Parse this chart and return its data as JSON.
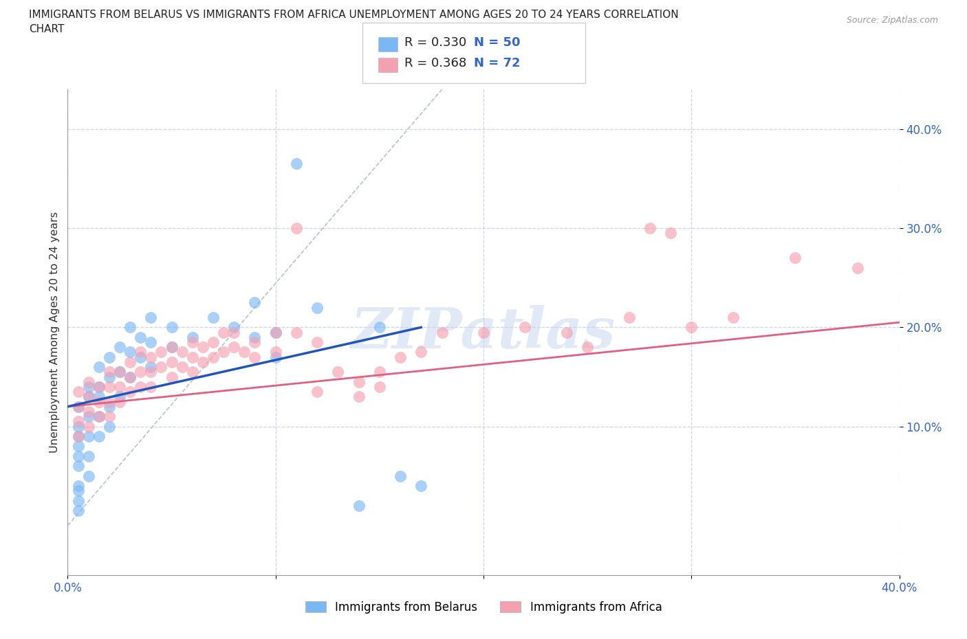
{
  "title_line1": "IMMIGRANTS FROM BELARUS VS IMMIGRANTS FROM AFRICA UNEMPLOYMENT AMONG AGES 20 TO 24 YEARS CORRELATION",
  "title_line2": "CHART",
  "source": "Source: ZipAtlas.com",
  "ylabel": "Unemployment Among Ages 20 to 24 years",
  "xlim": [
    0.0,
    0.4
  ],
  "ylim": [
    -0.05,
    0.44
  ],
  "watermark": "ZIPatlas",
  "legend_label1": "Immigrants from Belarus",
  "legend_label2": "Immigrants from Africa",
  "color_belarus": "#7ab8f5",
  "color_africa": "#f5a0b0",
  "color_trendline_belarus": "#2255bb",
  "color_trendline_africa": "#e06080",
  "color_diagonal": "#b0b8cc",
  "tick_color": "#3366cc",
  "belarus_x": [
    0.005,
    0.005,
    0.005,
    0.005,
    0.005,
    0.005,
    0.005,
    0.005,
    0.005,
    0.005,
    0.01,
    0.01,
    0.01,
    0.01,
    0.01,
    0.01,
    0.015,
    0.015,
    0.015,
    0.015,
    0.015,
    0.02,
    0.02,
    0.02,
    0.02,
    0.025,
    0.025,
    0.025,
    0.03,
    0.03,
    0.03,
    0.035,
    0.035,
    0.04,
    0.04,
    0.04,
    0.05,
    0.05,
    0.06,
    0.07,
    0.08,
    0.09,
    0.09,
    0.1,
    0.1,
    0.11,
    0.12,
    0.14,
    0.15,
    0.16,
    0.17
  ],
  "belarus_y": [
    0.12,
    0.1,
    0.09,
    0.08,
    0.07,
    0.06,
    0.04,
    0.035,
    0.025,
    0.015,
    0.14,
    0.13,
    0.11,
    0.09,
    0.07,
    0.05,
    0.16,
    0.14,
    0.13,
    0.11,
    0.09,
    0.17,
    0.15,
    0.12,
    0.1,
    0.18,
    0.155,
    0.13,
    0.2,
    0.175,
    0.15,
    0.19,
    0.17,
    0.21,
    0.185,
    0.16,
    0.2,
    0.18,
    0.19,
    0.21,
    0.2,
    0.225,
    0.19,
    0.195,
    0.17,
    0.365,
    0.22,
    0.02,
    0.2,
    0.05,
    0.04
  ],
  "africa_x": [
    0.005,
    0.005,
    0.005,
    0.005,
    0.01,
    0.01,
    0.01,
    0.01,
    0.015,
    0.015,
    0.015,
    0.02,
    0.02,
    0.02,
    0.02,
    0.025,
    0.025,
    0.025,
    0.03,
    0.03,
    0.03,
    0.035,
    0.035,
    0.035,
    0.04,
    0.04,
    0.04,
    0.045,
    0.045,
    0.05,
    0.05,
    0.05,
    0.055,
    0.055,
    0.06,
    0.06,
    0.06,
    0.065,
    0.065,
    0.07,
    0.07,
    0.075,
    0.075,
    0.08,
    0.08,
    0.085,
    0.09,
    0.09,
    0.1,
    0.1,
    0.11,
    0.11,
    0.12,
    0.12,
    0.13,
    0.14,
    0.14,
    0.15,
    0.15,
    0.16,
    0.17,
    0.18,
    0.2,
    0.22,
    0.24,
    0.25,
    0.27,
    0.28,
    0.29,
    0.3,
    0.32,
    0.35,
    0.38
  ],
  "africa_y": [
    0.135,
    0.12,
    0.105,
    0.09,
    0.145,
    0.13,
    0.115,
    0.1,
    0.14,
    0.125,
    0.11,
    0.155,
    0.14,
    0.125,
    0.11,
    0.155,
    0.14,
    0.125,
    0.165,
    0.15,
    0.135,
    0.175,
    0.155,
    0.14,
    0.17,
    0.155,
    0.14,
    0.175,
    0.16,
    0.18,
    0.165,
    0.15,
    0.175,
    0.16,
    0.185,
    0.17,
    0.155,
    0.18,
    0.165,
    0.185,
    0.17,
    0.195,
    0.175,
    0.195,
    0.18,
    0.175,
    0.185,
    0.17,
    0.195,
    0.175,
    0.3,
    0.195,
    0.135,
    0.185,
    0.155,
    0.145,
    0.13,
    0.155,
    0.14,
    0.17,
    0.175,
    0.195,
    0.195,
    0.2,
    0.195,
    0.18,
    0.21,
    0.3,
    0.295,
    0.2,
    0.21,
    0.27,
    0.26
  ]
}
